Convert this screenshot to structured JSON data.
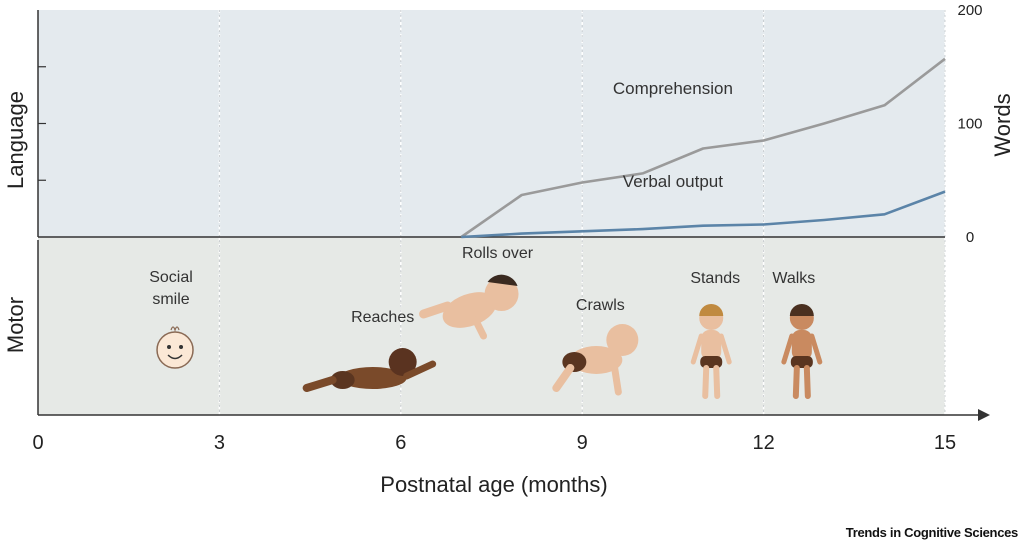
{
  "chart_data": {
    "type": "line",
    "xlabel": "Postnatal age (months)",
    "x_ticks": [
      0,
      3,
      6,
      9,
      12,
      15
    ],
    "xlim": [
      0,
      15
    ],
    "grid": true,
    "top_panel": {
      "ylabel_left": "Language",
      "ylabel_right": "Words",
      "ylim": [
        0,
        200
      ],
      "y_ticks_right": [
        0,
        100,
        200
      ],
      "series": [
        {
          "name": "Comprehension",
          "color": "#9a9a9a",
          "x": [
            7,
            8,
            9,
            10,
            11,
            12,
            13,
            14,
            15
          ],
          "y": [
            0,
            37,
            48,
            56,
            78,
            85,
            100,
            116,
            157
          ]
        },
        {
          "name": "Verbal output",
          "color": "#5b84a8",
          "x": [
            7,
            8,
            9,
            10,
            11,
            12,
            13,
            14,
            15
          ],
          "y": [
            0,
            3,
            5,
            7,
            10,
            11,
            15,
            20,
            40
          ]
        }
      ]
    },
    "bottom_panel": {
      "ylabel_left": "Motor",
      "milestones": [
        {
          "label": "Social smile",
          "lines": [
            "Social",
            "smile"
          ],
          "month": 2.2,
          "figure": "face-icon"
        },
        {
          "label": "Reaches",
          "lines": [
            "Reaches"
          ],
          "month": 5.7,
          "figure": "baby-reaching-figure"
        },
        {
          "label": "Rolls over",
          "lines": [
            "Rolls over"
          ],
          "month": 7.6,
          "figure": "baby-rolling-figure"
        },
        {
          "label": "Crawls",
          "lines": [
            "Crawls"
          ],
          "month": 9.3,
          "figure": "baby-crawling-figure"
        },
        {
          "label": "Stands",
          "lines": [
            "Stands"
          ],
          "month": 11.2,
          "figure": "baby-standing-figure"
        },
        {
          "label": "Walks",
          "lines": [
            "Walks"
          ],
          "month": 12.5,
          "figure": "baby-walking-figure"
        }
      ]
    }
  },
  "credit": "Trends in Cognitive Sciences"
}
